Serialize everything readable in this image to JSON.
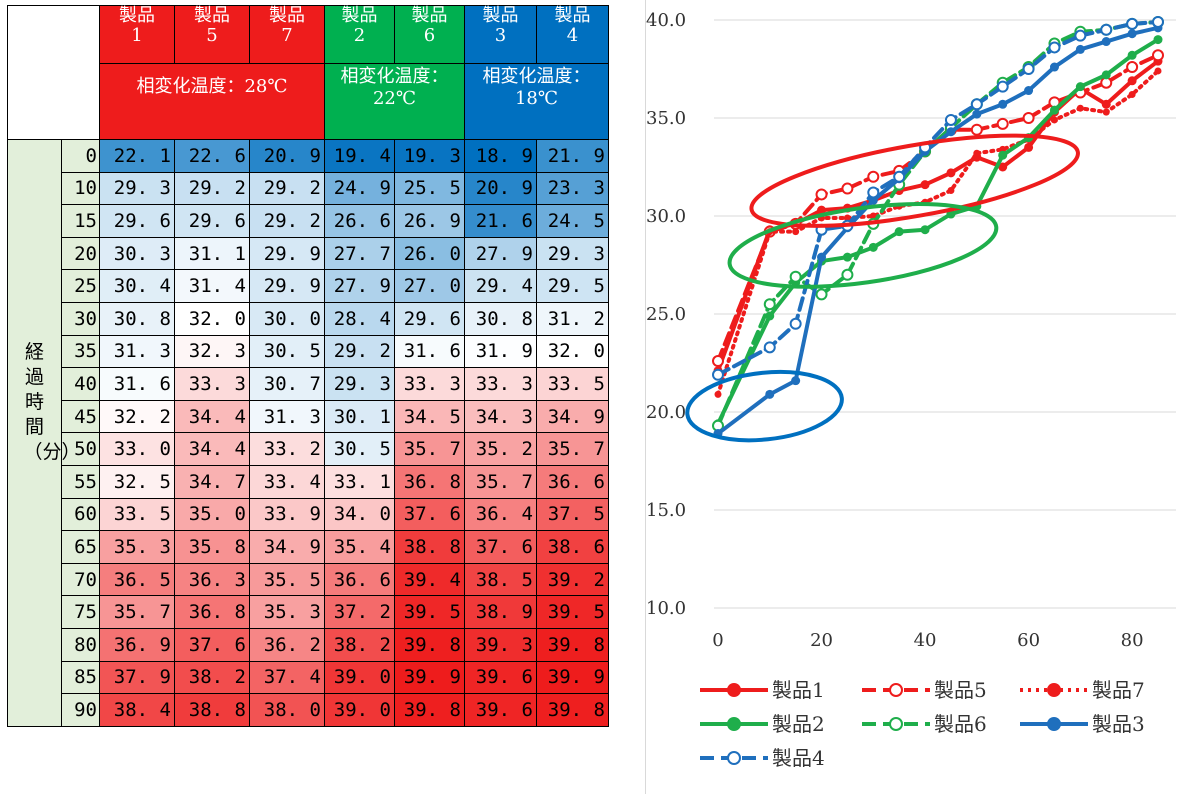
{
  "table": {
    "groups": [
      {
        "label": "相変化温度：28℃",
        "color": "#ee1c1c",
        "products": [
          "製品\n1",
          "製品\n5",
          "製品\n7"
        ]
      },
      {
        "label": "相変化温度：\n22℃",
        "color": "#00b050",
        "products": [
          "製品\n2",
          "製品\n6"
        ]
      },
      {
        "label": "相変化温度：\n18℃",
        "color": "#0070c0",
        "products": [
          "製品\n3",
          "製品\n4"
        ]
      }
    ],
    "side_label": "経過時間（分）",
    "times": [
      "0",
      "10",
      "15",
      "20",
      "25",
      "30",
      "35",
      "40",
      "45",
      "50",
      "55",
      "60",
      "65",
      "70",
      "75",
      "80",
      "85",
      "90"
    ],
    "rows": [
      [
        "22.1",
        "22.6",
        "20.9",
        "19.4",
        "19.3",
        "18.9",
        "21.9"
      ],
      [
        "29.3",
        "29.2",
        "29.2",
        "24.9",
        "25.5",
        "20.9",
        "23.3"
      ],
      [
        "29.6",
        "29.6",
        "29.2",
        "26.6",
        "26.9",
        "21.6",
        "24.5"
      ],
      [
        "30.3",
        "31.1",
        "29.9",
        "27.7",
        "26.0",
        "27.9",
        "29.3"
      ],
      [
        "30.4",
        "31.4",
        "29.9",
        "27.9",
        "27.0",
        "29.4",
        "29.5"
      ],
      [
        "30.8",
        "32.0",
        "30.0",
        "28.4",
        "29.6",
        "30.8",
        "31.2"
      ],
      [
        "31.3",
        "32.3",
        "30.5",
        "29.2",
        "31.6",
        "31.9",
        "32.0"
      ],
      [
        "31.6",
        "33.3",
        "30.7",
        "29.3",
        "33.3",
        "33.3",
        "33.5"
      ],
      [
        "32.2",
        "34.4",
        "31.3",
        "30.1",
        "34.5",
        "34.3",
        "34.9"
      ],
      [
        "33.0",
        "34.4",
        "33.2",
        "30.5",
        "35.7",
        "35.2",
        "35.7"
      ],
      [
        "32.5",
        "34.7",
        "33.4",
        "33.1",
        "36.8",
        "35.7",
        "36.6"
      ],
      [
        "33.5",
        "35.0",
        "33.9",
        "34.0",
        "37.6",
        "36.4",
        "37.5"
      ],
      [
        "35.3",
        "35.8",
        "34.9",
        "35.4",
        "38.8",
        "37.6",
        "38.6"
      ],
      [
        "36.5",
        "36.3",
        "35.5",
        "36.6",
        "39.4",
        "38.5",
        "39.2"
      ],
      [
        "35.7",
        "36.8",
        "35.3",
        "37.2",
        "39.5",
        "38.9",
        "39.5"
      ],
      [
        "36.9",
        "37.6",
        "36.2",
        "38.2",
        "39.8",
        "39.3",
        "39.8"
      ],
      [
        "37.9",
        "38.2",
        "37.4",
        "39.0",
        "39.9",
        "39.6",
        "39.9"
      ],
      [
        "38.4",
        "38.8",
        "38.0",
        "39.0",
        "39.8",
        "39.6",
        "39.8"
      ]
    ],
    "heat_colors": {
      "low": "#0070c0",
      "mid": "#ffffff",
      "high": "#ee1c1c"
    }
  },
  "chart_data": {
    "type": "line",
    "x": [
      0,
      10,
      15,
      20,
      25,
      30,
      35,
      40,
      45,
      50,
      55,
      60,
      65,
      70,
      75,
      80,
      85,
      90
    ],
    "xlim": [
      0,
      85
    ],
    "ylim": [
      10.0,
      40.0
    ],
    "xticks": [
      "0",
      "20",
      "40",
      "60",
      "80"
    ],
    "yticks": [
      "10.0",
      "15.0",
      "20.0",
      "25.0",
      "30.0",
      "35.0",
      "40.0"
    ],
    "grid": true,
    "legend_position": "bottom",
    "series": [
      {
        "name": "製品1",
        "color": "#ee1c1c",
        "style": "solid",
        "marker": "filled",
        "values": [
          22.1,
          29.3,
          29.6,
          30.3,
          30.4,
          30.8,
          31.3,
          31.6,
          32.2,
          33.0,
          32.5,
          33.5,
          35.3,
          36.5,
          35.7,
          36.9,
          37.9,
          38.4
        ]
      },
      {
        "name": "製品5",
        "color": "#ee1c1c",
        "style": "dashed",
        "marker": "open",
        "values": [
          22.6,
          29.2,
          29.6,
          31.1,
          31.4,
          32.0,
          32.3,
          33.3,
          34.4,
          34.4,
          34.7,
          35.0,
          35.8,
          36.3,
          36.8,
          37.6,
          38.2,
          38.8
        ]
      },
      {
        "name": "製品7",
        "color": "#ee1c1c",
        "style": "dotted",
        "marker": "filled",
        "values": [
          20.9,
          29.2,
          29.2,
          29.9,
          29.9,
          30.0,
          30.5,
          30.7,
          31.3,
          33.2,
          33.4,
          33.9,
          34.9,
          35.5,
          35.3,
          36.2,
          37.4,
          38.0
        ]
      },
      {
        "name": "製品2",
        "color": "#1fae4b",
        "style": "solid",
        "marker": "filled",
        "values": [
          19.4,
          24.9,
          26.6,
          27.7,
          27.9,
          28.4,
          29.2,
          29.3,
          30.1,
          30.5,
          33.1,
          34.0,
          35.4,
          36.6,
          37.2,
          38.2,
          39.0,
          39.0
        ]
      },
      {
        "name": "製品6",
        "color": "#1fae4b",
        "style": "dashed",
        "marker": "open",
        "values": [
          19.3,
          25.5,
          26.9,
          26.0,
          27.0,
          29.6,
          31.6,
          33.3,
          34.5,
          35.7,
          36.8,
          37.6,
          38.8,
          39.4,
          39.5,
          39.8,
          39.9,
          39.8
        ]
      },
      {
        "name": "製品3",
        "color": "#1f6fbd",
        "style": "solid",
        "marker": "filled",
        "values": [
          18.9,
          20.9,
          21.6,
          27.9,
          29.4,
          30.8,
          31.9,
          33.3,
          34.3,
          35.2,
          35.7,
          36.4,
          37.6,
          38.5,
          38.9,
          39.3,
          39.6,
          39.6
        ]
      },
      {
        "name": "製品4",
        "color": "#1f6fbd",
        "style": "dashed",
        "marker": "open",
        "values": [
          21.9,
          23.3,
          24.5,
          29.3,
          29.5,
          31.2,
          32.0,
          33.5,
          34.9,
          35.7,
          36.6,
          37.5,
          38.6,
          39.2,
          39.5,
          39.8,
          39.9,
          39.8
        ]
      }
    ],
    "annotations": [
      {
        "shape": "ellipse",
        "color": "#ee1c1c",
        "around": "製品1/5/7",
        "cx": 38,
        "cy": 31.8,
        "rx": 32,
        "ry": 1.8,
        "angle": -10
      },
      {
        "shape": "ellipse",
        "color": "#1fae4b",
        "around": "製品2/6",
        "cx": 28,
        "cy": 28.5,
        "rx": 26,
        "ry": 1.9,
        "angle": -8
      },
      {
        "shape": "ellipse",
        "color": "#0070c0",
        "around": "製品3/4",
        "cx": 9,
        "cy": 20.3,
        "rx": 15,
        "ry": 1.7,
        "angle": -6
      }
    ]
  }
}
